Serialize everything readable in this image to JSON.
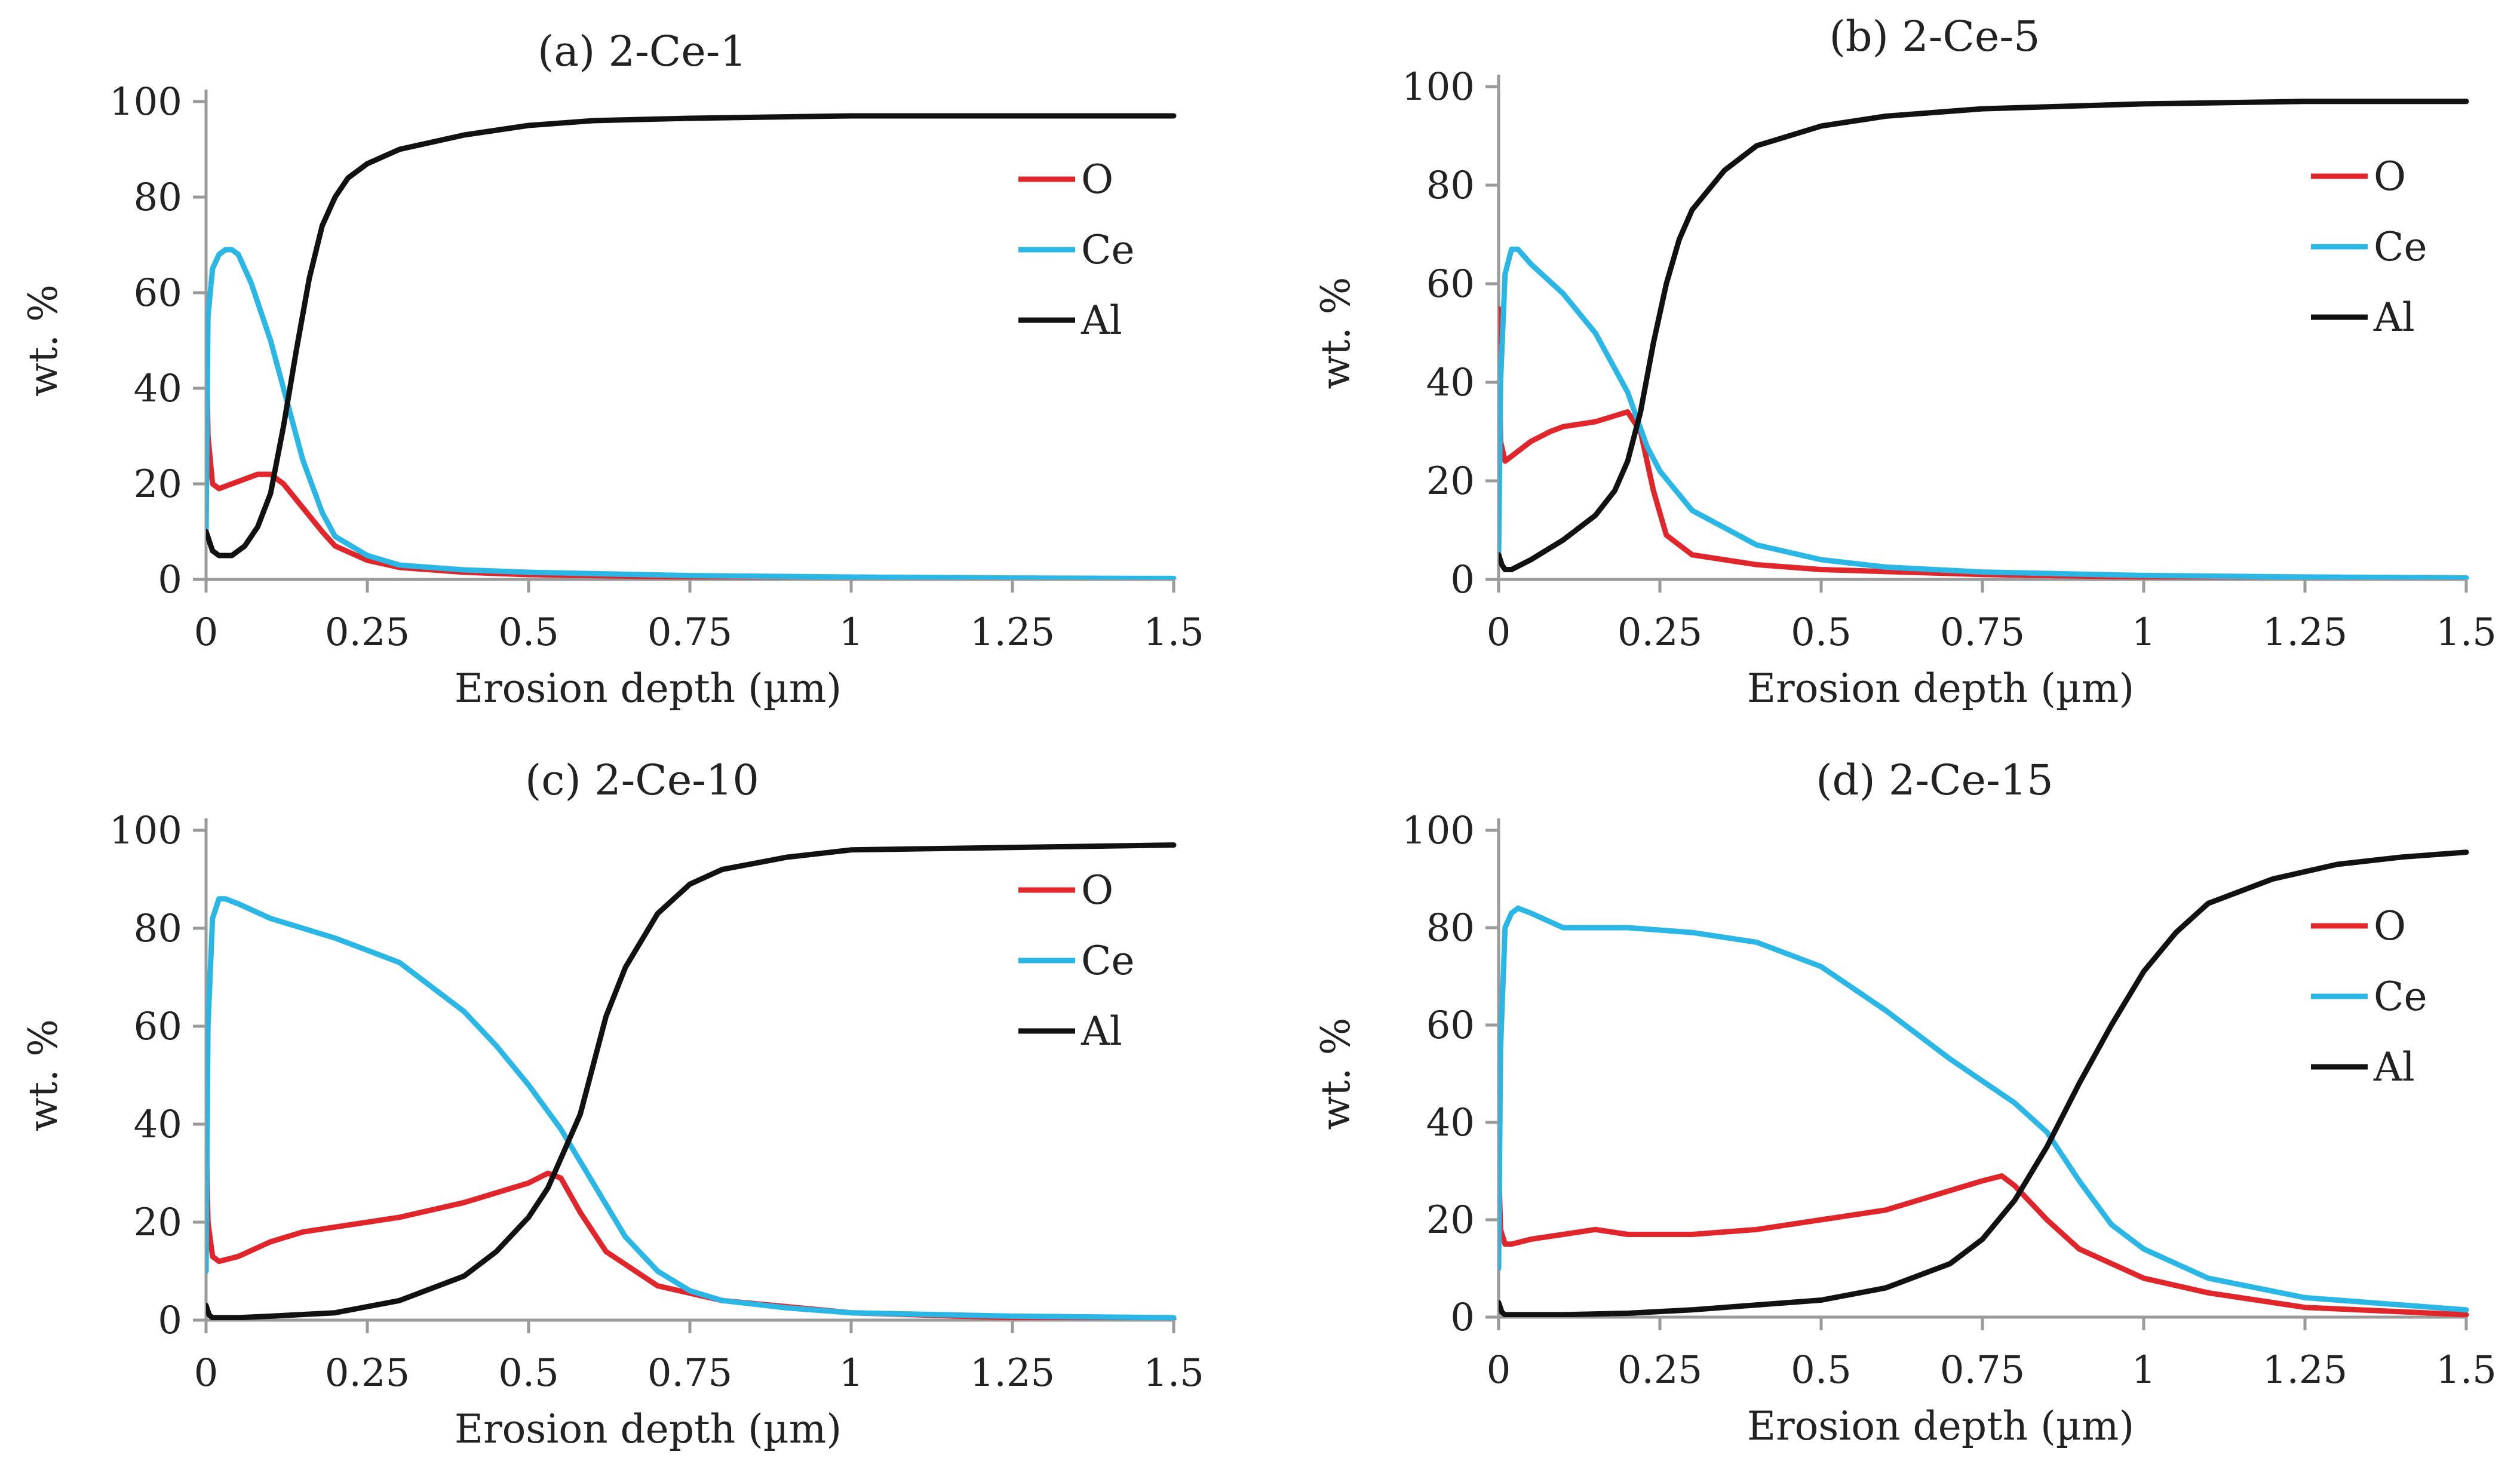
{
  "figure": {
    "series_styles": [
      {
        "name": "O",
        "color": "#e0252b"
      },
      {
        "name": "Ce",
        "color": "#2bb7e6"
      },
      {
        "name": "Al",
        "color": "#111111"
      }
    ]
  },
  "chart_data": [
    {
      "type": "line",
      "title": "(a) 2-Ce-1",
      "xlabel": "Erosion depth (µm)",
      "ylabel": "wt. %",
      "xlim": [
        0,
        1.5
      ],
      "ylim": [
        0,
        100
      ],
      "xticks": [
        "0",
        "0.25",
        "0.5",
        "0.75",
        "1",
        "1.25",
        "1.5"
      ],
      "yticks": [
        "0",
        "20",
        "40",
        "60",
        "80",
        "100"
      ],
      "grid": false,
      "legend_position": "top-right",
      "series": [
        {
          "name": "O",
          "color": "#e0252b",
          "x": [
            0,
            0.003,
            0.01,
            0.02,
            0.04,
            0.06,
            0.08,
            0.1,
            0.12,
            0.15,
            0.18,
            0.2,
            0.25,
            0.3,
            0.4,
            0.5,
            0.75,
            1.0,
            1.25,
            1.5
          ],
          "y": [
            55,
            30,
            20,
            19,
            20,
            21,
            22,
            22,
            20,
            15,
            10,
            7,
            4,
            2.5,
            1.5,
            1,
            0.5,
            0.3,
            0.2,
            0.1
          ]
        },
        {
          "name": "Ce",
          "color": "#2bb7e6",
          "x": [
            0,
            0.003,
            0.01,
            0.02,
            0.03,
            0.04,
            0.05,
            0.07,
            0.1,
            0.12,
            0.15,
            0.18,
            0.2,
            0.25,
            0.3,
            0.4,
            0.5,
            0.75,
            1.0,
            1.25,
            1.5
          ],
          "y": [
            10,
            55,
            65,
            68,
            69,
            69,
            68,
            62,
            50,
            40,
            25,
            14,
            9,
            5,
            3,
            2,
            1.5,
            0.8,
            0.5,
            0.3,
            0.2
          ]
        },
        {
          "name": "Al",
          "color": "#111111",
          "x": [
            0,
            0.005,
            0.01,
            0.02,
            0.04,
            0.06,
            0.08,
            0.1,
            0.12,
            0.14,
            0.16,
            0.18,
            0.2,
            0.22,
            0.25,
            0.3,
            0.4,
            0.5,
            0.6,
            0.75,
            1.0,
            1.25,
            1.5
          ],
          "y": [
            10,
            8,
            6,
            5,
            5,
            7,
            11,
            18,
            32,
            48,
            63,
            74,
            80,
            84,
            87,
            90,
            93,
            95,
            96,
            96.5,
            97,
            97,
            97
          ]
        }
      ]
    },
    {
      "type": "line",
      "title": "(b) 2-Ce-5",
      "xlabel": "Erosion depth (µm)",
      "ylabel": "wt. %",
      "xlim": [
        0,
        1.5
      ],
      "ylim": [
        0,
        100
      ],
      "xticks": [
        "0",
        "0.25",
        "0.5",
        "0.75",
        "1",
        "1.25",
        "1.5"
      ],
      "yticks": [
        "0",
        "20",
        "40",
        "60",
        "80",
        "100"
      ],
      "grid": false,
      "legend_position": "top-right",
      "series": [
        {
          "name": "O",
          "color": "#e0252b",
          "x": [
            0,
            0.003,
            0.01,
            0.02,
            0.05,
            0.08,
            0.1,
            0.15,
            0.2,
            0.22,
            0.24,
            0.26,
            0.3,
            0.4,
            0.5,
            0.75,
            1.0,
            1.25,
            1.5
          ],
          "y": [
            55,
            28,
            24,
            25,
            28,
            30,
            31,
            32,
            34,
            30,
            18,
            9,
            5,
            3,
            2,
            1,
            0.5,
            0.3,
            0.2
          ]
        },
        {
          "name": "Ce",
          "color": "#2bb7e6",
          "x": [
            0,
            0.003,
            0.01,
            0.02,
            0.03,
            0.05,
            0.1,
            0.15,
            0.2,
            0.23,
            0.25,
            0.3,
            0.4,
            0.5,
            0.6,
            0.75,
            1.0,
            1.25,
            1.5
          ],
          "y": [
            5,
            40,
            62,
            67,
            67,
            64,
            58,
            50,
            38,
            27,
            22,
            14,
            7,
            4,
            2.5,
            1.5,
            0.8,
            0.5,
            0.3
          ]
        },
        {
          "name": "Al",
          "color": "#111111",
          "x": [
            0,
            0.005,
            0.01,
            0.02,
            0.05,
            0.1,
            0.15,
            0.18,
            0.2,
            0.22,
            0.24,
            0.26,
            0.28,
            0.3,
            0.35,
            0.4,
            0.5,
            0.6,
            0.75,
            1.0,
            1.25,
            1.5
          ],
          "y": [
            5,
            3,
            2,
            2,
            4,
            8,
            13,
            18,
            24,
            34,
            48,
            60,
            69,
            75,
            83,
            88,
            92,
            94,
            95.5,
            96.5,
            97,
            97
          ]
        }
      ]
    },
    {
      "type": "line",
      "title": "(c) 2-Ce-10",
      "xlabel": "Erosion depth (µm)",
      "ylabel": "wt. %",
      "xlim": [
        0,
        1.5
      ],
      "ylim": [
        0,
        100
      ],
      "xticks": [
        "0",
        "0.25",
        "0.5",
        "0.75",
        "1",
        "1.25",
        "1.5"
      ],
      "yticks": [
        "0",
        "20",
        "40",
        "60",
        "80",
        "100"
      ],
      "grid": false,
      "legend_position": "top-right",
      "series": [
        {
          "name": "O",
          "color": "#e0252b",
          "x": [
            0,
            0.003,
            0.01,
            0.02,
            0.05,
            0.1,
            0.15,
            0.2,
            0.3,
            0.4,
            0.45,
            0.5,
            0.53,
            0.55,
            0.58,
            0.62,
            0.7,
            0.8,
            1.0,
            1.25,
            1.5
          ],
          "y": [
            40,
            20,
            13,
            12,
            13,
            16,
            18,
            19,
            21,
            24,
            26,
            28,
            30,
            29,
            22,
            14,
            7,
            4,
            1.5,
            0.5,
            0.2
          ]
        },
        {
          "name": "Ce",
          "color": "#2bb7e6",
          "x": [
            0,
            0.003,
            0.01,
            0.02,
            0.03,
            0.05,
            0.1,
            0.2,
            0.3,
            0.4,
            0.45,
            0.5,
            0.55,
            0.6,
            0.65,
            0.7,
            0.75,
            0.8,
            0.9,
            1.0,
            1.25,
            1.5
          ],
          "y": [
            10,
            60,
            82,
            86,
            86,
            85,
            82,
            78,
            73,
            63,
            56,
            48,
            39,
            28,
            17,
            10,
            6,
            4,
            2.5,
            1.5,
            0.8,
            0.5
          ]
        },
        {
          "name": "Al",
          "color": "#111111",
          "x": [
            0,
            0.005,
            0.01,
            0.05,
            0.1,
            0.2,
            0.3,
            0.4,
            0.45,
            0.5,
            0.53,
            0.55,
            0.58,
            0.6,
            0.62,
            0.65,
            0.7,
            0.75,
            0.8,
            0.9,
            1.0,
            1.25,
            1.5
          ],
          "y": [
            3,
            1,
            0.5,
            0.5,
            0.8,
            1.5,
            4,
            9,
            14,
            21,
            27,
            33,
            42,
            52,
            62,
            72,
            83,
            89,
            92,
            94.5,
            96,
            96.5,
            97
          ]
        }
      ]
    },
    {
      "type": "line",
      "title": "(d) 2-Ce-15",
      "xlabel": "Erosion depth (µm)",
      "ylabel": "wt. %",
      "xlim": [
        0,
        1.5
      ],
      "ylim": [
        0,
        100
      ],
      "xticks": [
        "0",
        "0.25",
        "0.5",
        "0.75",
        "1",
        "1.25",
        "1.5"
      ],
      "yticks": [
        "0",
        "20",
        "40",
        "60",
        "80",
        "100"
      ],
      "grid": false,
      "legend_position": "top-right",
      "series": [
        {
          "name": "O",
          "color": "#e0252b",
          "x": [
            0,
            0.003,
            0.01,
            0.02,
            0.05,
            0.1,
            0.15,
            0.2,
            0.3,
            0.4,
            0.5,
            0.6,
            0.7,
            0.75,
            0.78,
            0.8,
            0.85,
            0.9,
            1.0,
            1.1,
            1.25,
            1.5
          ],
          "y": [
            32,
            18,
            15,
            15,
            16,
            17,
            18,
            17,
            17,
            18,
            20,
            22,
            26,
            28,
            29,
            27,
            20,
            14,
            8,
            5,
            2,
            0.5
          ]
        },
        {
          "name": "Ce",
          "color": "#2bb7e6",
          "x": [
            0,
            0.003,
            0.01,
            0.02,
            0.03,
            0.05,
            0.1,
            0.2,
            0.3,
            0.4,
            0.5,
            0.6,
            0.7,
            0.8,
            0.85,
            0.9,
            0.95,
            1.0,
            1.1,
            1.25,
            1.5
          ],
          "y": [
            10,
            55,
            80,
            83,
            84,
            83,
            80,
            80,
            79,
            77,
            72,
            63,
            53,
            44,
            38,
            28,
            19,
            14,
            8,
            4,
            1.5
          ]
        },
        {
          "name": "Al",
          "color": "#111111",
          "x": [
            0,
            0.005,
            0.01,
            0.05,
            0.1,
            0.2,
            0.3,
            0.4,
            0.5,
            0.6,
            0.7,
            0.75,
            0.8,
            0.85,
            0.9,
            0.95,
            1.0,
            1.05,
            1.1,
            1.2,
            1.3,
            1.4,
            1.5
          ],
          "y": [
            3,
            1,
            0.5,
            0.5,
            0.5,
            0.8,
            1.5,
            2.5,
            3.5,
            6,
            11,
            16,
            24,
            35,
            48,
            60,
            71,
            79,
            85,
            90,
            93,
            94.5,
            95.5
          ]
        }
      ]
    }
  ]
}
